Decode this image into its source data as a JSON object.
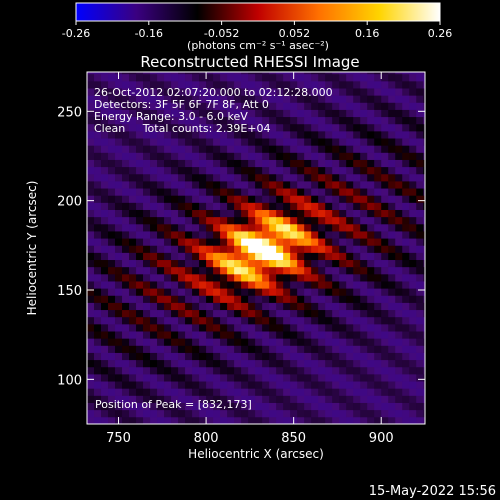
{
  "chart_data": {
    "type": "heatmap",
    "title": "Reconstructed RHESSI Image",
    "xlabel": "Heliocentric X (arcsec)",
    "ylabel": "Heliocentric Y (arcsec)",
    "xlim": [
      732,
      925
    ],
    "ylim": [
      75,
      272
    ],
    "x_ticks": [
      750,
      800,
      850,
      900
    ],
    "y_ticks": [
      100,
      150,
      200,
      250
    ],
    "colorbar": {
      "ticks": [
        "-0.26",
        "-0.16",
        "-0.052",
        "0.052",
        "0.16",
        "0.26"
      ],
      "range": [
        -0.26,
        0.26
      ],
      "unit_label": "(photons cm⁻² s⁻¹ asec⁻²)",
      "colors": [
        "#0000ff",
        "#3a0080",
        "#000000",
        "#c00000",
        "#ff7000",
        "#ffd400",
        "#ffffff"
      ]
    },
    "annotations": [
      "26-Oct-2012 02:07:20.000 to 02:12:28.000",
      "Detectors: 3F 5F 6F 7F 8F, Att 0",
      "Energy Range: 3.0 - 6.0 keV",
      "Clean     Total counts: 2.39E+04"
    ],
    "peak_label": "Position of Peak = [832,173]",
    "peak": {
      "x": 832,
      "y": 173
    }
  },
  "footer_date": "15-May-2022 15:56"
}
